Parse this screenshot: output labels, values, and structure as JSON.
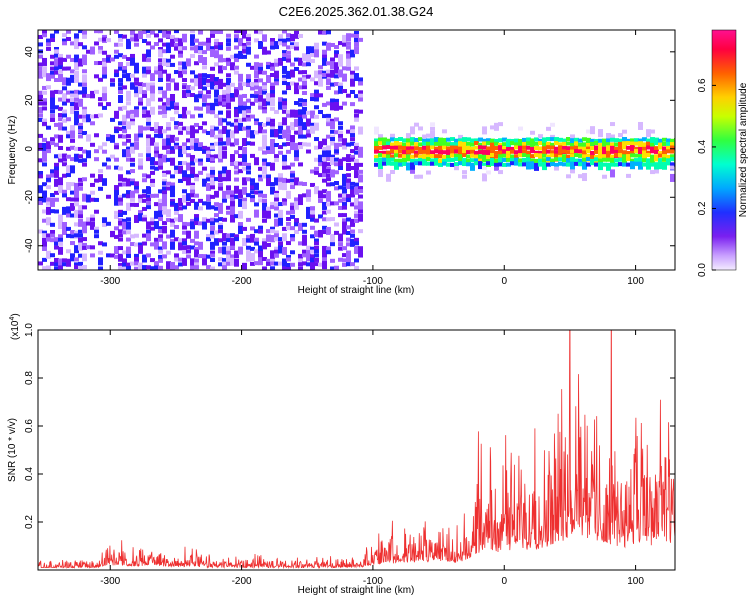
{
  "title": "C2E6.2025.362.01.38.G24",
  "colors": {
    "snr_line": "#ee3030",
    "colormap": [
      "#f0e6ff",
      "#d6b8ff",
      "#a060ff",
      "#6a10f0",
      "#2020ff",
      "#00b0ff",
      "#00ffb0",
      "#40ff20",
      "#ffe000",
      "#ff6000",
      "#ff0060",
      "#ff2080"
    ]
  },
  "chart_data": [
    {
      "type": "heatmap",
      "title": "C2E6.2025.362.01.38.G24",
      "xlabel": "Height of straight line (km)",
      "ylabel": "Frequency (Hz)",
      "xlim": [
        -355,
        130
      ],
      "ylim": [
        -50,
        49
      ],
      "x_ticks": [
        "-300",
        "-200",
        "-100",
        "0",
        "100"
      ],
      "y_ticks": [
        "-40",
        "-20",
        "0",
        "20",
        "40"
      ],
      "signal_band": {
        "x_start": -100,
        "x_end": 130,
        "freq_center": 0,
        "freq_halfwidth": 6
      },
      "colorbar": {
        "label": "Normalized spectral amplitude",
        "range": [
          0.0,
          0.78
        ],
        "ticks": [
          "0.0",
          "0.2",
          "0.4",
          "0.6"
        ]
      }
    },
    {
      "type": "line",
      "xlabel": "Height of straight line (km)",
      "ylabel": "SNR (10 * v/v)",
      "y_multiplier": "(x10",
      "y_multiplier_exp": "4",
      "y_multiplier_close": ")",
      "xlim": [
        -355,
        130
      ],
      "ylim": [
        0,
        1.0
      ],
      "x_ticks": [
        "-300",
        "-200",
        "-100",
        "0",
        "100"
      ],
      "y_ticks": [
        "0.2",
        "0.4",
        "0.6",
        "0.8",
        "1.0"
      ],
      "series": [
        {
          "envelope_x": [
            -355,
            -310,
            -305,
            -280,
            -270,
            -250,
            -240,
            -220,
            -200,
            -150,
            -110,
            -90,
            -70,
            -60,
            -45,
            -35,
            -20,
            -10,
            0,
            10,
            20,
            30,
            40,
            50,
            55,
            60,
            70,
            80,
            90,
            100,
            110,
            120,
            130
          ],
          "envelope_y": [
            0.04,
            0.05,
            0.12,
            0.1,
            0.13,
            0.07,
            0.1,
            0.06,
            0.07,
            0.05,
            0.07,
            0.18,
            0.2,
            0.23,
            0.24,
            0.2,
            0.42,
            0.48,
            0.52,
            0.56,
            0.55,
            0.6,
            0.76,
            0.86,
            0.98,
            0.96,
            0.74,
            0.7,
            0.62,
            0.72,
            0.62,
            0.84,
            0.58
          ]
        }
      ]
    }
  ]
}
